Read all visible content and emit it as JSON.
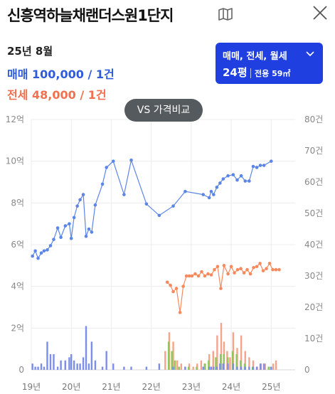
{
  "header": {
    "title": "신흥역하늘채랜더스원1단지"
  },
  "summary": {
    "period": "25년 8월",
    "sale_text": "매매 100,000 / 1건",
    "jeonse_text": "전세 48,000 / 1건"
  },
  "filter": {
    "types_label": "매매, 전세, 월세",
    "area_label": "24평",
    "exclusive_label": "전용 59㎡"
  },
  "compare_button": {
    "label": "VS 가격비교"
  },
  "colors": {
    "sale": "#5b86e5",
    "jeonse": "#f58a5e",
    "volume_sale": "#7c8ee8",
    "volume_jeonse": "#f4a48a",
    "volume_monthly": "#8bc85e",
    "accent": "#1f3fe0"
  },
  "chart_data": {
    "type": "line",
    "x_tick_labels": [
      "19년",
      "20년",
      "21년",
      "22년",
      "23년",
      "24년",
      "25년"
    ],
    "x_range_year": [
      2019.0,
      2025.6
    ],
    "left_axis": {
      "min": 0,
      "max": 12,
      "ticks": [
        0,
        2,
        4,
        6,
        8,
        10,
        12
      ],
      "tick_labels": [
        "0",
        "2억",
        "4억",
        "6억",
        "8억",
        "10억",
        "12억"
      ]
    },
    "right_axis": {
      "min": 0,
      "max": 80,
      "ticks": [
        0,
        10,
        20,
        30,
        40,
        50,
        60,
        70,
        80
      ],
      "tick_labels": [
        "0",
        "10건",
        "20건",
        "30건",
        "40건",
        "50건",
        "60건",
        "70건",
        "80건"
      ]
    },
    "series": [
      {
        "name": "매매",
        "axis": "left",
        "points": [
          [
            2019.03,
            5.45
          ],
          [
            2019.1,
            5.7
          ],
          [
            2019.17,
            5.35
          ],
          [
            2019.25,
            5.6
          ],
          [
            2019.32,
            5.7
          ],
          [
            2019.4,
            5.75
          ],
          [
            2019.48,
            5.95
          ],
          [
            2019.56,
            6.25
          ],
          [
            2019.66,
            6.8
          ],
          [
            2019.74,
            6.35
          ],
          [
            2019.85,
            6.9
          ],
          [
            2019.95,
            7.0
          ],
          [
            2020.0,
            6.3
          ],
          [
            2020.07,
            7.3
          ],
          [
            2020.15,
            7.85
          ],
          [
            2020.22,
            8.15
          ],
          [
            2020.3,
            8.4
          ],
          [
            2020.37,
            6.4
          ],
          [
            2020.44,
            6.75
          ],
          [
            2020.51,
            6.6
          ],
          [
            2020.6,
            7.9
          ],
          [
            2020.78,
            8.9
          ],
          [
            2020.88,
            9.7
          ],
          [
            2021.05,
            10.0
          ],
          [
            2021.32,
            8.4
          ],
          [
            2021.5,
            10.05
          ],
          [
            2021.88,
            7.95
          ],
          [
            2022.2,
            7.4
          ],
          [
            2022.55,
            7.85
          ],
          [
            2022.85,
            8.55
          ],
          [
            2023.3,
            8.4
          ],
          [
            2023.45,
            8.25
          ],
          [
            2023.5,
            8.55
          ],
          [
            2023.56,
            8.4
          ],
          [
            2023.64,
            8.75
          ],
          [
            2023.72,
            8.95
          ],
          [
            2023.8,
            9.15
          ],
          [
            2023.92,
            9.3
          ],
          [
            2024.05,
            9.35
          ],
          [
            2024.15,
            9.1
          ],
          [
            2024.25,
            9.3
          ],
          [
            2024.35,
            9.05
          ],
          [
            2024.45,
            9.05
          ],
          [
            2024.55,
            9.75
          ],
          [
            2024.64,
            9.7
          ],
          [
            2024.73,
            9.8
          ],
          [
            2024.82,
            9.8
          ],
          [
            2025.0,
            10.0
          ]
        ]
      },
      {
        "name": "전세",
        "axis": "left",
        "points": [
          [
            2022.4,
            4.2
          ],
          [
            2022.48,
            4.05
          ],
          [
            2022.55,
            3.75
          ],
          [
            2022.63,
            3.9
          ],
          [
            2022.72,
            2.75
          ],
          [
            2022.8,
            4.0
          ],
          [
            2022.88,
            4.5
          ],
          [
            2022.95,
            4.5
          ],
          [
            2023.02,
            4.5
          ],
          [
            2023.1,
            4.6
          ],
          [
            2023.18,
            4.5
          ],
          [
            2023.26,
            4.7
          ],
          [
            2023.34,
            4.5
          ],
          [
            2023.42,
            4.6
          ],
          [
            2023.5,
            4.55
          ],
          [
            2023.58,
            4.8
          ],
          [
            2023.66,
            4.95
          ],
          [
            2023.74,
            3.9
          ],
          [
            2023.82,
            5.0
          ],
          [
            2023.92,
            4.6
          ],
          [
            2024.0,
            4.95
          ],
          [
            2024.08,
            4.65
          ],
          [
            2024.16,
            4.8
          ],
          [
            2024.24,
            4.85
          ],
          [
            2024.32,
            4.65
          ],
          [
            2024.4,
            4.8
          ],
          [
            2024.48,
            4.6
          ],
          [
            2024.56,
            4.9
          ],
          [
            2024.64,
            4.95
          ],
          [
            2024.72,
            5.1
          ],
          [
            2024.8,
            4.75
          ],
          [
            2024.88,
            4.85
          ],
          [
            2024.96,
            5.1
          ],
          [
            2025.04,
            4.8
          ],
          [
            2025.12,
            4.8
          ],
          [
            2025.2,
            4.8
          ]
        ]
      }
    ],
    "volume_bars": {
      "axis": "right",
      "sale": [
        [
          2019.03,
          2
        ],
        [
          2019.1,
          1
        ],
        [
          2019.17,
          1
        ],
        [
          2019.25,
          2
        ],
        [
          2019.32,
          1
        ],
        [
          2019.4,
          9
        ],
        [
          2019.48,
          5
        ],
        [
          2019.56,
          5
        ],
        [
          2019.66,
          1
        ],
        [
          2019.74,
          3
        ],
        [
          2019.85,
          3
        ],
        [
          2019.95,
          4
        ],
        [
          2020.0,
          5
        ],
        [
          2020.07,
          3
        ],
        [
          2020.15,
          2
        ],
        [
          2020.22,
          2
        ],
        [
          2020.3,
          4
        ],
        [
          2020.37,
          14
        ],
        [
          2020.44,
          2
        ],
        [
          2020.51,
          9
        ],
        [
          2020.6,
          3
        ],
        [
          2020.78,
          1
        ],
        [
          2020.88,
          6
        ],
        [
          2021.05,
          2
        ],
        [
          2021.32,
          1
        ],
        [
          2021.5,
          1
        ],
        [
          2021.88,
          1
        ],
        [
          2022.2,
          2
        ],
        [
          2022.55,
          1
        ],
        [
          2022.85,
          1
        ],
        [
          2023.3,
          1
        ],
        [
          2023.45,
          1
        ],
        [
          2023.5,
          1
        ],
        [
          2023.56,
          1
        ],
        [
          2023.64,
          1
        ],
        [
          2023.72,
          2
        ],
        [
          2023.8,
          2
        ],
        [
          2023.92,
          2
        ],
        [
          2024.05,
          2
        ],
        [
          2024.15,
          1
        ],
        [
          2024.25,
          1
        ],
        [
          2024.35,
          1
        ],
        [
          2024.45,
          1
        ],
        [
          2024.55,
          1
        ],
        [
          2024.64,
          1
        ],
        [
          2024.73,
          2
        ],
        [
          2024.82,
          2
        ],
        [
          2025.0,
          1
        ]
      ],
      "jeonse": [
        [
          2022.35,
          6
        ],
        [
          2022.45,
          12
        ],
        [
          2022.55,
          9
        ],
        [
          2022.65,
          3
        ],
        [
          2022.75,
          2
        ],
        [
          2022.85,
          1
        ],
        [
          2022.95,
          2
        ],
        [
          2023.05,
          1
        ],
        [
          2023.15,
          2
        ],
        [
          2023.25,
          3
        ],
        [
          2023.35,
          2
        ],
        [
          2023.45,
          5
        ],
        [
          2023.55,
          6
        ],
        [
          2023.65,
          11
        ],
        [
          2023.75,
          15
        ],
        [
          2023.82,
          9
        ],
        [
          2023.9,
          6
        ],
        [
          2023.97,
          4
        ],
        [
          2024.05,
          12
        ],
        [
          2024.15,
          7
        ],
        [
          2024.25,
          11
        ],
        [
          2024.35,
          6
        ],
        [
          2024.45,
          4
        ],
        [
          2024.55,
          3
        ],
        [
          2024.65,
          1
        ],
        [
          2024.75,
          2
        ],
        [
          2024.85,
          2
        ],
        [
          2024.95,
          1
        ],
        [
          2025.05,
          2
        ],
        [
          2025.12,
          3
        ]
      ],
      "monthly": [
        [
          2022.4,
          9
        ],
        [
          2022.48,
          6
        ],
        [
          2022.56,
          3
        ],
        [
          2022.66,
          1
        ],
        [
          2022.9,
          1
        ],
        [
          2023.1,
          1
        ],
        [
          2023.3,
          2
        ],
        [
          2023.4,
          3
        ],
        [
          2023.58,
          4
        ],
        [
          2023.7,
          5
        ],
        [
          2023.78,
          5
        ],
        [
          2023.88,
          4
        ],
        [
          2024.0,
          6
        ],
        [
          2024.1,
          5
        ],
        [
          2024.2,
          3
        ],
        [
          2024.3,
          2
        ],
        [
          2024.5,
          1
        ],
        [
          2024.9,
          1
        ]
      ]
    }
  }
}
